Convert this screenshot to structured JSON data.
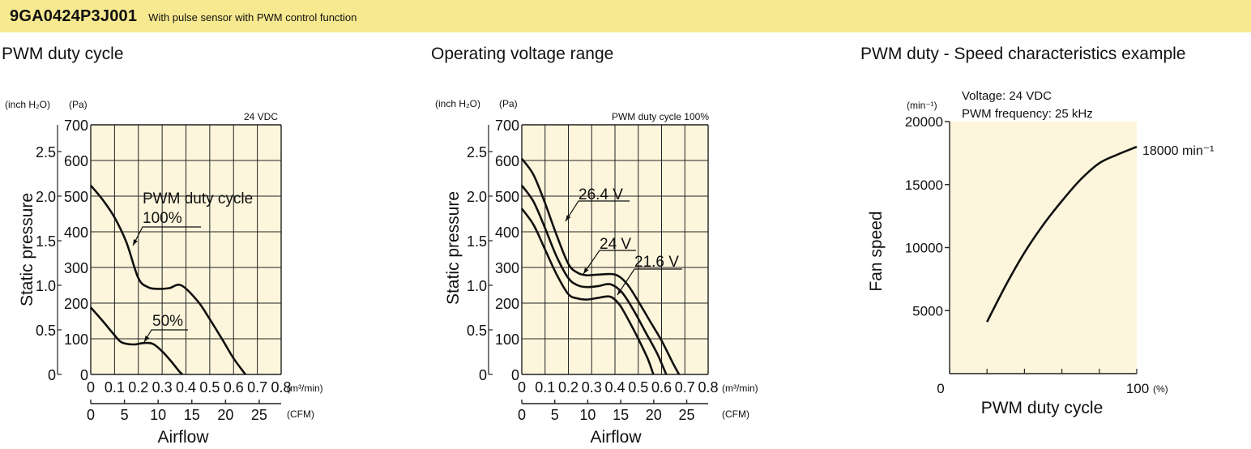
{
  "header": {
    "model": "9GA0424P3J001",
    "subtitle": "With pulse sensor with PWM control function"
  },
  "panels": {
    "duty": {
      "title": "PWM duty cycle",
      "unit_inch": "(inch H₂O)",
      "unit_pa": "(Pa)",
      "condition": "24 VDC",
      "ylabel": "Static pressure",
      "xlabel": "Airflow",
      "unit_m3": "(m³/min)",
      "unit_cfm": "(CFM)",
      "annotation_line1": "PWM duty cycle",
      "annotation_line2": "100%",
      "annotation_50": "50%"
    },
    "voltage": {
      "title": "Operating voltage range",
      "unit_inch": "(inch H₂O)",
      "unit_pa": "(Pa)",
      "condition": "PWM duty cycle 100%",
      "ylabel": "Static pressure",
      "xlabel": "Airflow",
      "unit_m3": "(m³/min)",
      "unit_cfm": "(CFM)",
      "label_264": "26.4 V",
      "label_24": "24 V",
      "label_216": "21.6 V"
    },
    "speed": {
      "title": "PWM duty - Speed characteristics example",
      "voltage": "Voltage: 24 VDC",
      "frequency": "PWM frequency: 25 kHz",
      "unit_min": "(min⁻¹)",
      "ylabel": "Fan speed",
      "xlabel": "PWM duty cycle",
      "end_label": "18000 min⁻¹",
      "x_end_unit": "(%)"
    }
  },
  "colors": {
    "header_bg": "#f7e98f",
    "plot_bg": "#fdf6dc",
    "curve": "#111111"
  },
  "chart_data": [
    {
      "type": "line",
      "title": "PWM duty cycle",
      "xlabel": "Airflow",
      "ylabel": "Static pressure",
      "x_unit": "m³/min",
      "y_unit": "Pa",
      "xlim": [
        0,
        0.8
      ],
      "ylim": [
        0,
        700
      ],
      "xticks": [
        "0",
        "0.1",
        "0.2",
        "0.3",
        "0.4",
        "0.5",
        "0.6",
        "0.7",
        "0.8"
      ],
      "yticks": [
        "0",
        "100",
        "200",
        "300",
        "400",
        "500",
        "600",
        "700"
      ],
      "secondary_x_ticks": [
        "0",
        "5",
        "10",
        "15",
        "20",
        "25"
      ],
      "secondary_x_unit": "CFM",
      "secondary_y_ticks": [
        "0",
        "0.5",
        "1.0",
        "1.5",
        "2.0",
        "2.5"
      ],
      "secondary_y_unit": "inch H₂O",
      "grid": true,
      "series": [
        {
          "name": "100%",
          "points": [
            [
              0,
              530
            ],
            [
              0.05,
              490
            ],
            [
              0.1,
              440
            ],
            [
              0.15,
              370
            ],
            [
              0.2,
              270
            ],
            [
              0.24,
              245
            ],
            [
              0.28,
              240
            ],
            [
              0.33,
              242
            ],
            [
              0.38,
              250
            ],
            [
              0.45,
              205
            ],
            [
              0.5,
              155
            ],
            [
              0.56,
              90
            ],
            [
              0.6,
              45
            ],
            [
              0.65,
              0
            ]
          ]
        },
        {
          "name": "50%",
          "points": [
            [
              0,
              188
            ],
            [
              0.05,
              150
            ],
            [
              0.1,
              110
            ],
            [
              0.13,
              90
            ],
            [
              0.18,
              84
            ],
            [
              0.22,
              88
            ],
            [
              0.26,
              86
            ],
            [
              0.3,
              65
            ],
            [
              0.34,
              35
            ],
            [
              0.37,
              10
            ],
            [
              0.385,
              0
            ]
          ]
        }
      ]
    },
    {
      "type": "line",
      "title": "Operating voltage range",
      "xlabel": "Airflow",
      "ylabel": "Static pressure",
      "x_unit": "m³/min",
      "y_unit": "Pa",
      "xlim": [
        0,
        0.8
      ],
      "ylim": [
        0,
        700
      ],
      "xticks": [
        "0",
        "0.1",
        "0.2",
        "0.3",
        "0.4",
        "0.5",
        "0.6",
        "0.7",
        "0.8"
      ],
      "yticks": [
        "0",
        "100",
        "200",
        "300",
        "400",
        "500",
        "600",
        "700"
      ],
      "secondary_x_ticks": [
        "0",
        "5",
        "10",
        "15",
        "20",
        "25"
      ],
      "secondary_x_unit": "CFM",
      "secondary_y_ticks": [
        "0",
        "0.5",
        "1.0",
        "1.5",
        "2.0",
        "2.5"
      ],
      "secondary_y_unit": "inch H₂O",
      "grid": true,
      "series": [
        {
          "name": "26.4 V",
          "points": [
            [
              0,
              605
            ],
            [
              0.05,
              560
            ],
            [
              0.1,
              480
            ],
            [
              0.15,
              390
            ],
            [
              0.2,
              310
            ],
            [
              0.24,
              285
            ],
            [
              0.28,
              278
            ],
            [
              0.33,
              280
            ],
            [
              0.4,
              280
            ],
            [
              0.45,
              255
            ],
            [
              0.5,
              205
            ],
            [
              0.55,
              150
            ],
            [
              0.6,
              95
            ],
            [
              0.65,
              30
            ],
            [
              0.675,
              0
            ]
          ]
        },
        {
          "name": "24 V",
          "points": [
            [
              0,
              530
            ],
            [
              0.05,
              485
            ],
            [
              0.1,
              410
            ],
            [
              0.15,
              330
            ],
            [
              0.2,
              270
            ],
            [
              0.24,
              250
            ],
            [
              0.28,
              245
            ],
            [
              0.33,
              248
            ],
            [
              0.38,
              253
            ],
            [
              0.43,
              230
            ],
            [
              0.48,
              180
            ],
            [
              0.53,
              120
            ],
            [
              0.58,
              60
            ],
            [
              0.62,
              0
            ]
          ]
        },
        {
          "name": "21.6 V",
          "points": [
            [
              0,
              465
            ],
            [
              0.05,
              420
            ],
            [
              0.1,
              350
            ],
            [
              0.15,
              280
            ],
            [
              0.2,
              225
            ],
            [
              0.24,
              213
            ],
            [
              0.28,
              210
            ],
            [
              0.33,
              215
            ],
            [
              0.38,
              218
            ],
            [
              0.42,
              195
            ],
            [
              0.46,
              150
            ],
            [
              0.5,
              100
            ],
            [
              0.54,
              45
            ],
            [
              0.565,
              0
            ]
          ]
        }
      ]
    },
    {
      "type": "line",
      "title": "PWM duty - Speed characteristics example",
      "xlabel": "PWM duty cycle",
      "ylabel": "Fan speed",
      "x_unit": "%",
      "y_unit": "min⁻¹",
      "xlim": [
        0,
        100
      ],
      "ylim": [
        0,
        20000
      ],
      "xticks": [
        "0",
        "100"
      ],
      "yticks": [
        "5000",
        "10000",
        "15000",
        "20000"
      ],
      "grid": false,
      "series": [
        {
          "name": "18000 min⁻¹",
          "points": [
            [
              20,
              4100
            ],
            [
              30,
              7000
            ],
            [
              40,
              9600
            ],
            [
              50,
              11800
            ],
            [
              60,
              13700
            ],
            [
              70,
              15400
            ],
            [
              80,
              16700
            ],
            [
              90,
              17400
            ],
            [
              100,
              18000
            ]
          ]
        }
      ]
    }
  ]
}
